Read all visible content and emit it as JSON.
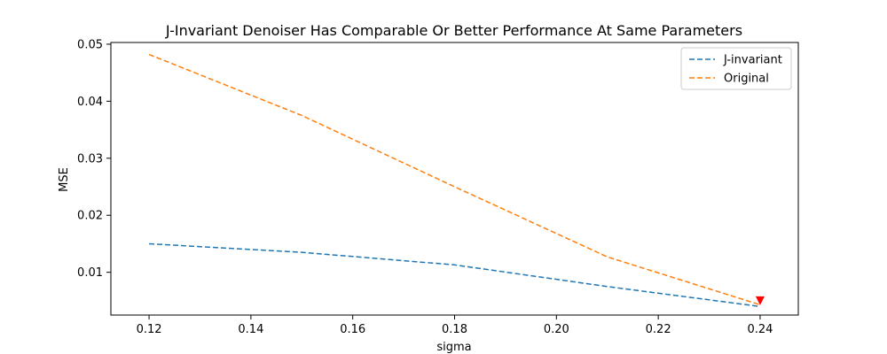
{
  "chart_data": {
    "type": "line",
    "title": "J-Invariant Denoiser Has Comparable Or Better Performance At Same Parameters",
    "xlabel": "sigma",
    "ylabel": "MSE",
    "xlim": [
      0.1125,
      0.2475
    ],
    "ylim": [
      0.0025,
      0.0503
    ],
    "x_ticks": [
      0.12,
      0.14,
      0.16,
      0.18,
      0.2,
      0.22,
      0.24
    ],
    "x_tick_labels": [
      "0.12",
      "0.14",
      "0.16",
      "0.18",
      "0.20",
      "0.22",
      "0.24"
    ],
    "y_ticks": [
      0.01,
      0.02,
      0.03,
      0.04,
      0.05
    ],
    "y_tick_labels": [
      "0.01",
      "0.02",
      "0.03",
      "0.04",
      "0.05"
    ],
    "grid": false,
    "legend_position": "top-right",
    "series": [
      {
        "name": "J-invariant",
        "color": "#1f77b4",
        "style": "dashed",
        "x": [
          0.12,
          0.15,
          0.18,
          0.21,
          0.24
        ],
        "y": [
          0.015,
          0.0135,
          0.0113,
          0.0075,
          0.004
        ]
      },
      {
        "name": "Original",
        "color": "#ff7f0e",
        "style": "dashed",
        "x": [
          0.12,
          0.15,
          0.18,
          0.21,
          0.24
        ],
        "y": [
          0.0482,
          0.0375,
          0.025,
          0.0127,
          0.0043
        ]
      }
    ],
    "annotations": [
      {
        "type": "marker",
        "shape": "down-triangle",
        "color": "#ff0000",
        "x": 0.24,
        "y": 0.005
      }
    ]
  }
}
